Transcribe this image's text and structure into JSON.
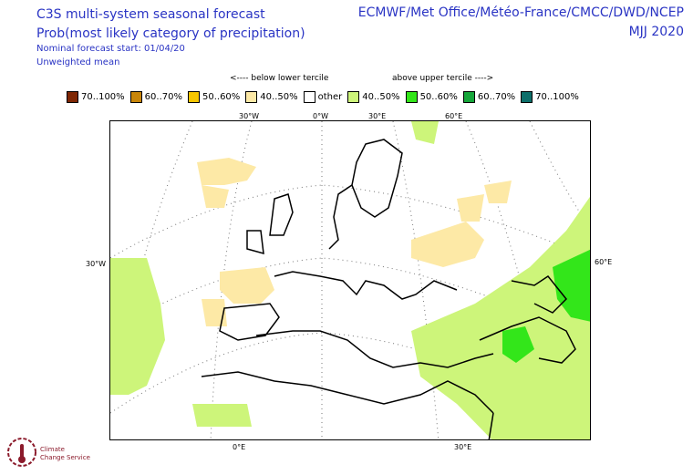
{
  "header_left": {
    "line1": "C3S multi-system seasonal forecast",
    "line2": "Prob(most likely category of precipitation)",
    "line3": "Nominal forecast start: 01/04/20",
    "line4": "Unweighted mean"
  },
  "header_right": {
    "centres": "ECMWF/Met Office/Météo-France/CMCC/DWD/NCEP",
    "season": "MJJ 2020"
  },
  "tercile_labels": {
    "below": "<---- below lower tercile",
    "above": "above upper tercile ---->"
  },
  "legend": [
    {
      "label": "70..100%",
      "color": "#7f2704"
    },
    {
      "label": "60..70%",
      "color": "#c8860a"
    },
    {
      "label": "50..60%",
      "color": "#f7c600"
    },
    {
      "label": "40..50%",
      "color": "#fde9a6"
    },
    {
      "label": "other",
      "color": "#ffffff"
    },
    {
      "label": "40..50%",
      "color": "#cdf57a"
    },
    {
      "label": "50..60%",
      "color": "#33e61a"
    },
    {
      "label": "60..70%",
      "color": "#16a63a"
    },
    {
      "label": "70..100%",
      "color": "#0d6f6a"
    }
  ],
  "graticule_labels": {
    "top": [
      "30°W",
      "0°W",
      "30°E",
      "60°E"
    ],
    "left": "30°W",
    "right": "60°E",
    "bottom": [
      "0°E",
      "30°E"
    ]
  },
  "logo_text": {
    "line1": "Climate",
    "line2": "Change Service"
  }
}
